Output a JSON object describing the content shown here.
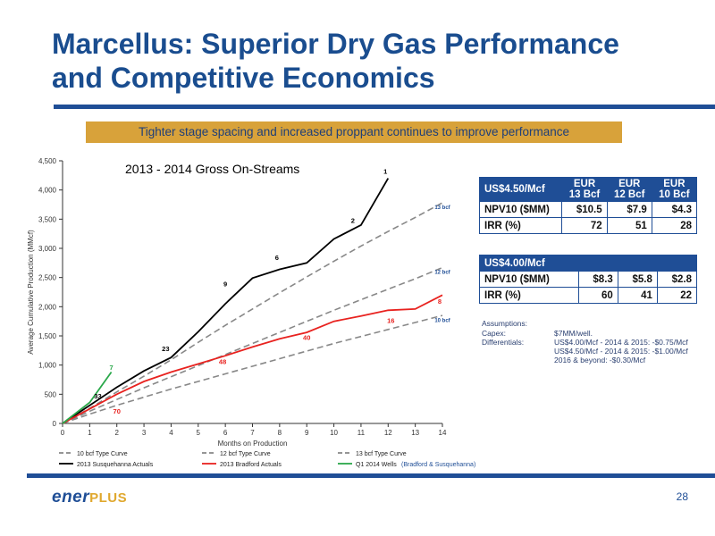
{
  "header": {
    "title_line1": "Marcellus:  Superior Dry Gas Performance",
    "title_line2": "and Competitive Economics",
    "banner": "Tighter stage spacing and increased proppant  continues to improve performance"
  },
  "chart_data": {
    "type": "line",
    "title": "2013 - 2014 Gross On-Streams",
    "xlabel": "Months on Production",
    "ylabel": "Average Cumulative Production (MMcf)",
    "xlim": [
      0,
      14
    ],
    "ylim": [
      0,
      4500
    ],
    "x_ticks": [
      "0",
      "1",
      "2",
      "3",
      "4",
      "5",
      "6",
      "7",
      "8",
      "9",
      "10",
      "11",
      "12",
      "13",
      "14"
    ],
    "y_ticks": [
      "0",
      "500",
      "1,000",
      "1,500",
      "2,000",
      "2,500",
      "3,000",
      "3,500",
      "4,000",
      "4,500"
    ],
    "grid": false,
    "series": [
      {
        "name": "10 bcf Type Curve",
        "color": "#888888",
        "dash": true,
        "x": [
          0,
          1,
          2,
          3,
          4,
          5,
          6,
          7,
          8,
          9,
          10,
          11,
          12,
          13,
          14
        ],
        "y": [
          0,
          160,
          310,
          450,
          590,
          720,
          850,
          980,
          1110,
          1240,
          1370,
          1490,
          1610,
          1730,
          1850
        ]
      },
      {
        "name": "12 bcf Type Curve",
        "color": "#888888",
        "dash": true,
        "x": [
          0,
          1,
          2,
          3,
          4,
          5,
          6,
          7,
          8,
          9,
          10,
          11,
          12,
          13,
          14
        ],
        "y": [
          0,
          210,
          410,
          610,
          800,
          990,
          1180,
          1370,
          1560,
          1750,
          1940,
          2120,
          2300,
          2480,
          2670
        ]
      },
      {
        "name": "13 bcf Type Curve",
        "color": "#888888",
        "dash": true,
        "x": [
          0,
          1,
          2,
          3,
          4,
          5,
          6,
          7,
          8,
          9,
          10,
          11,
          12,
          13,
          14
        ],
        "y": [
          0,
          260,
          540,
          810,
          1090,
          1390,
          1680,
          1960,
          2240,
          2510,
          2780,
          3040,
          3290,
          3530,
          3780
        ]
      },
      {
        "name": "2013 Susquehanna Actuals",
        "color": "#000000",
        "dash": false,
        "x": [
          0,
          1,
          2,
          3,
          4,
          5,
          6,
          7,
          8,
          9,
          10,
          11,
          12
        ],
        "y": [
          0,
          310,
          620,
          900,
          1130,
          1570,
          2050,
          2490,
          2640,
          2750,
          3160,
          3400,
          4200
        ]
      },
      {
        "name": "2013 Bradford Actuals",
        "color": "#e8221f",
        "dash": false,
        "x": [
          0,
          1,
          2,
          3,
          4,
          5,
          6,
          7,
          8,
          9,
          10,
          11,
          12,
          13,
          14
        ],
        "y": [
          0,
          250,
          500,
          720,
          880,
          1020,
          1160,
          1310,
          1450,
          1560,
          1750,
          1840,
          1940,
          1960,
          2200
        ]
      },
      {
        "name": "Q1 2014 Wells",
        "legend_suffix": "(Bradford & Susquehanna)",
        "color": "#2aa84a",
        "dash": false,
        "x": [
          0,
          1,
          1.8
        ],
        "y": [
          0,
          360,
          880
        ]
      }
    ],
    "annotations": [
      {
        "text": "1",
        "x": 11.9,
        "y": 4280,
        "color": "#000000"
      },
      {
        "text": "2",
        "x": 10.7,
        "y": 3440,
        "color": "#000000"
      },
      {
        "text": "6",
        "x": 7.9,
        "y": 2800,
        "color": "#000000"
      },
      {
        "text": "9",
        "x": 6.0,
        "y": 2350,
        "color": "#000000"
      },
      {
        "text": "23",
        "x": 3.8,
        "y": 1240,
        "color": "#000000"
      },
      {
        "text": "33",
        "x": 1.3,
        "y": 430,
        "color": "#000000"
      },
      {
        "text": "7",
        "x": 1.8,
        "y": 920,
        "color": "#2aa84a"
      },
      {
        "text": "70",
        "x": 2.0,
        "y": 170,
        "color": "#e8221f"
      },
      {
        "text": "48",
        "x": 5.9,
        "y": 1020,
        "color": "#e8221f"
      },
      {
        "text": "40",
        "x": 9.0,
        "y": 1430,
        "color": "#e8221f"
      },
      {
        "text": "16",
        "x": 12.1,
        "y": 1720,
        "color": "#e8221f"
      },
      {
        "text": "8",
        "x": 13.9,
        "y": 2050,
        "color": "#e8221f"
      },
      {
        "text": "13 bcf",
        "x": 14.0,
        "y": 3670,
        "color": "#1f4e96"
      },
      {
        "text": "12 bcf",
        "x": 14.0,
        "y": 2560,
        "color": "#1f4e96"
      },
      {
        "text": "10 bcf",
        "x": 14.0,
        "y": 1740,
        "color": "#1f4e96"
      }
    ]
  },
  "table1": {
    "header": [
      "US$4.50/Mcf",
      "EUR\n13 Bcf",
      "EUR\n12 Bcf",
      "EUR\n10 Bcf"
    ],
    "rows": [
      [
        "NPV10 ($MM)",
        "$10.5",
        "$7.9",
        "$4.3"
      ],
      [
        "IRR (%)",
        "72",
        "51",
        "28"
      ]
    ]
  },
  "table2": {
    "header": [
      "US$4.00/Mcf",
      "",
      "",
      ""
    ],
    "rows": [
      [
        "NPV10 ($MM)",
        "$8.3",
        "$5.8",
        "$2.8"
      ],
      [
        "IRR (%)",
        "60",
        "41",
        "22"
      ]
    ]
  },
  "assumptions": {
    "title": "Assumptions:",
    "capex_label": "Capex:",
    "capex_value": "$7MM/well.",
    "diff_label": "Differentials:",
    "diff_lines": [
      "US$4.00/Mcf - 2014 & 2015:  -$0.75/Mcf",
      "US$4.50/Mcf - 2014 & 2015:  -$1.00/Mcf",
      "2016 & beyond: -$0.30/Mcf"
    ]
  },
  "footer": {
    "logo_ener": "ener",
    "logo_plus": "PLUS",
    "page": "28"
  }
}
